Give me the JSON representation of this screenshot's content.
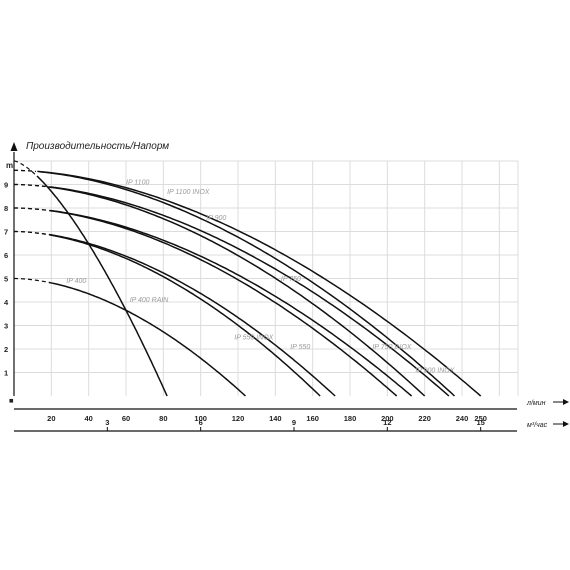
{
  "chart_data": {
    "type": "line",
    "title": "Производительность/Напорм",
    "ylabel": "m",
    "xlabel": "л/мин",
    "x2label": "м³/час",
    "xlim": [
      0,
      270
    ],
    "ylim": [
      0,
      10
    ],
    "x_ticks": [
      20,
      40,
      60,
      80,
      100,
      120,
      140,
      160,
      180,
      200,
      220,
      240,
      250
    ],
    "y_ticks": [
      1,
      2,
      3,
      4,
      5,
      6,
      7,
      8,
      9
    ],
    "x2_ticks": [
      3,
      6,
      9,
      12,
      15
    ],
    "origin_marker": "■",
    "grid": true,
    "series": [
      {
        "name": "IP 400",
        "h0": 5.0,
        "qmax": 124,
        "exp": 1.8
      },
      {
        "name": "IP 400 RAIN",
        "h0": 10.0,
        "qmax": 82,
        "exp": 1.45
      },
      {
        "name": "IP 550 INOX",
        "h0": 7.0,
        "qmax": 164,
        "exp": 1.8
      },
      {
        "name": "IP 550",
        "h0": 7.0,
        "qmax": 172,
        "exp": 1.8
      },
      {
        "name": "IP 750",
        "h0": 8.0,
        "qmax": 205,
        "exp": 1.8
      },
      {
        "name": "IP 750 INOX",
        "h0": 8.0,
        "qmax": 213,
        "exp": 1.8
      },
      {
        "name": "IP 900",
        "h0": 9.0,
        "qmax": 233,
        "exp": 1.8
      },
      {
        "name": "IP 900 INOX",
        "h0": 9.0,
        "qmax": 220,
        "exp": 1.8
      },
      {
        "name": "IP 1100",
        "h0": 9.6,
        "qmax": 250,
        "exp": 1.8
      },
      {
        "name": "IP 1100 INOX",
        "h0": 9.6,
        "qmax": 236,
        "exp": 1.8
      }
    ],
    "labels": [
      {
        "text": "IP 400",
        "x": 28,
        "y": 4.8
      },
      {
        "text": "IP 400 RAIN",
        "x": 62,
        "y": 4.0
      },
      {
        "text": "IP 550 INOX",
        "x": 118,
        "y": 2.4
      },
      {
        "text": "IP 550",
        "x": 148,
        "y": 2.0
      },
      {
        "text": "IP 750",
        "x": 143,
        "y": 4.9
      },
      {
        "text": "IP 750 INOX",
        "x": 192,
        "y": 2.0
      },
      {
        "text": "IP 900",
        "x": 103,
        "y": 7.5
      },
      {
        "text": "IP 900 INOX",
        "x": 215,
        "y": 1.0
      },
      {
        "text": "IP 1100",
        "x": 60,
        "y": 9.0
      },
      {
        "text": "IP 1100 INOX",
        "x": 82,
        "y": 8.6
      }
    ]
  }
}
